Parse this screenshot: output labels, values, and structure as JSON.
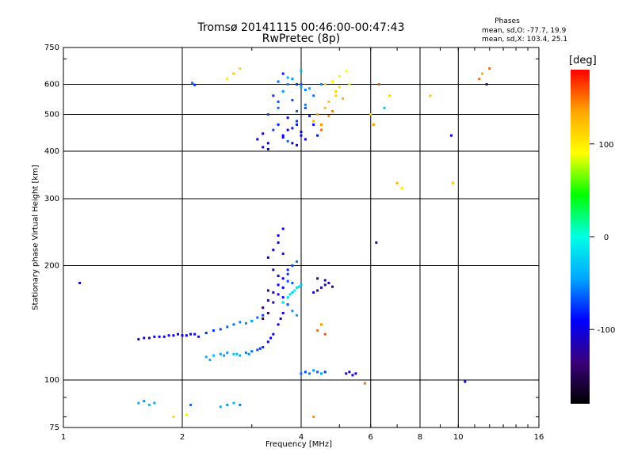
{
  "header": {
    "title": "Tromsø 20141115 00:46:00-00:47:43",
    "subtitle": "RwPretec (8p)"
  },
  "phases": {
    "title": "Phases",
    "o_mode": "mean, sd,O: -77.7, 19.9",
    "x_mode": "mean, sd,X: 103.4, 25.1"
  },
  "colorbar": {
    "unit": "[deg]",
    "ticks": [
      "100",
      "0",
      "-100"
    ],
    "tick_values": [
      100,
      0,
      -100
    ],
    "range": [
      -180,
      180
    ],
    "colors": [
      "#000000",
      "#3a007a",
      "#0000ff",
      "#00a6ff",
      "#00ffe6",
      "#00ff00",
      "#ffff00",
      "#ffa500",
      "#ff0000"
    ]
  },
  "chart_data": {
    "type": "scatter",
    "xlabel": "Frequency [MHz]",
    "ylabel": "Stationary phase Virtual Height [km]",
    "xscale": "log",
    "yscale": "log",
    "xlim": [
      1,
      16
    ],
    "ylim": [
      75,
      750
    ],
    "x_ticks": [
      1,
      2,
      4,
      6,
      8,
      10,
      16
    ],
    "x_tick_labels": [
      "1",
      "2",
      "4",
      "6",
      "8",
      "10",
      "16"
    ],
    "y_ticks": [
      75,
      100,
      200,
      300,
      400,
      500,
      600,
      750
    ],
    "y_tick_labels": [
      "75",
      "100",
      "200",
      "300",
      "400",
      "500",
      "600",
      "750"
    ],
    "grid_x": [
      2,
      4,
      6,
      8,
      10
    ],
    "grid_y": [
      100,
      200,
      300,
      400,
      500,
      600
    ],
    "series": [
      {
        "x": [
          3.1,
          3.2,
          3.3,
          3.4,
          3.5,
          3.6,
          3.7,
          3.8,
          3.9,
          4.0,
          3.3,
          3.5,
          3.7,
          3.9,
          4.1,
          3.4,
          3.6,
          3.8,
          4.0,
          3.5,
          3.7,
          3.9,
          4.1,
          3.6,
          3.8,
          4.0,
          4.2,
          3.7,
          3.9,
          4.2,
          3.8,
          4.0,
          4.3,
          3.9,
          4.1,
          4.4,
          3.5,
          3.7,
          4.0,
          3.2,
          3.3,
          3.6,
          3.9,
          4.1,
          4.3,
          4.5
        ],
        "y": [
          430,
          445,
          420,
          455,
          470,
          440,
          425,
          460,
          480,
          450,
          500,
          520,
          490,
          510,
          530,
          560,
          575,
          545,
          590,
          610,
          625,
          600,
          580,
          640,
          620,
          600,
          585,
          455,
          470,
          495,
          420,
          440,
          470,
          415,
          430,
          440,
          540,
          600,
          650,
          410,
          405,
          435,
          470,
          520,
          560,
          600
        ],
        "phase": [
          -95,
          -110,
          -90,
          -70,
          -80,
          -100,
          -60,
          -85,
          -75,
          -90,
          -70,
          -60,
          -95,
          -65,
          -55,
          -80,
          -50,
          -70,
          -45,
          -60,
          -40,
          -75,
          -55,
          -85,
          -50,
          -65,
          -45,
          -105,
          -95,
          -80,
          -115,
          -100,
          -90,
          -105,
          -95,
          -85,
          -65,
          -55,
          -40,
          -120,
          -110,
          -95,
          -80,
          -70,
          -60,
          -50
        ]
      },
      {
        "x": [
          4.3,
          4.4,
          4.5,
          4.6,
          4.7,
          4.8,
          4.9,
          5.0,
          4.6,
          4.8,
          5.0,
          5.2,
          5.3,
          4.9,
          5.1,
          4.7,
          4.5
        ],
        "y": [
          480,
          500,
          470,
          520,
          540,
          510,
          560,
          590,
          600,
          610,
          630,
          650,
          600,
          575,
          550,
          495,
          455
        ],
        "phase": [
          130,
          135,
          140,
          125,
          120,
          145,
          115,
          110,
          105,
          100,
          95,
          90,
          85,
          115,
          125,
          140,
          150
        ]
      },
      {
        "x": [
          1.55,
          1.6,
          1.7,
          1.8,
          1.9,
          2.0,
          2.1,
          2.2,
          2.3,
          2.4,
          2.5,
          2.6,
          2.7,
          2.8,
          2.9,
          3.0,
          3.1,
          3.2,
          1.65,
          1.75,
          1.85,
          1.95,
          2.05,
          2.15
        ],
        "y": [
          128,
          129,
          130,
          130,
          131,
          131,
          132,
          130,
          133,
          135,
          136,
          138,
          140,
          142,
          141,
          143,
          146,
          148,
          129,
          130,
          131,
          132,
          131,
          132
        ],
        "phase": [
          -110,
          -105,
          -100,
          -112,
          -95,
          -100,
          -90,
          -85,
          -80,
          -75,
          -70,
          -65,
          -60,
          -55,
          -50,
          -45,
          -60,
          -70,
          -108,
          -98,
          -104,
          -92,
          -96,
          -88
        ]
      },
      {
        "x": [
          2.3,
          2.4,
          2.5,
          2.6,
          2.7,
          2.8,
          2.9,
          3.0,
          3.1,
          3.2,
          3.3,
          3.4,
          3.5,
          3.6,
          3.7,
          2.35,
          2.55,
          2.75,
          2.95,
          3.15,
          3.35,
          3.55
        ],
        "y": [
          115,
          116,
          117,
          118,
          117,
          116,
          118,
          119,
          120,
          122,
          126,
          132,
          140,
          150,
          158,
          113,
          116,
          117,
          117,
          121,
          129,
          145
        ],
        "phase": [
          -40,
          -35,
          -45,
          -50,
          -30,
          -40,
          -55,
          -60,
          -70,
          -80,
          -90,
          -95,
          -100,
          -105,
          -110,
          -42,
          -48,
          -33,
          -52,
          -75,
          -92,
          -102
        ]
      },
      {
        "x": [
          3.2,
          3.3,
          3.4,
          3.5,
          3.6,
          3.7,
          3.8,
          3.9,
          3.3,
          3.4,
          3.5,
          3.6,
          3.7,
          3.8,
          3.2,
          3.3,
          3.4,
          3.5,
          3.6,
          3.7,
          3.5,
          3.6,
          3.4,
          3.5,
          3.3,
          3.6,
          3.7,
          3.8,
          3.9
        ],
        "y": [
          155,
          162,
          170,
          178,
          185,
          195,
          200,
          205,
          210,
          220,
          230,
          215,
          190,
          180,
          145,
          150,
          160,
          168,
          175,
          182,
          240,
          250,
          195,
          188,
          172,
          165,
          158,
          152,
          148
        ],
        "phase": [
          -140,
          -120,
          -110,
          -95,
          -100,
          -80,
          -70,
          -60,
          -115,
          -105,
          -90,
          -85,
          -75,
          -65,
          -150,
          -130,
          -125,
          -110,
          -90,
          -70,
          -100,
          -95,
          -120,
          -105,
          -135,
          -85,
          -60,
          -50,
          -45
        ]
      },
      {
        "x": [
          3.6,
          3.7,
          3.8,
          3.9,
          4.0,
          3.75,
          3.85,
          3.95
        ],
        "y": [
          160,
          165,
          170,
          175,
          178,
          168,
          172,
          176
        ],
        "phase": [
          -20,
          -15,
          -25,
          -10,
          -30,
          -18,
          -12,
          -22
        ]
      },
      {
        "x": [
          4.3,
          4.4,
          4.5,
          4.6,
          4.7,
          4.8,
          4.4,
          4.6
        ],
        "y": [
          170,
          172,
          175,
          178,
          180,
          176,
          185,
          183
        ],
        "phase": [
          -120,
          -130,
          -125,
          -115,
          -110,
          -135,
          -140,
          -118
        ]
      },
      {
        "x": [
          4.4,
          4.5,
          4.6
        ],
        "y": [
          135,
          140,
          132
        ],
        "phase": [
          150,
          140,
          160
        ]
      },
      {
        "x": [
          4.0,
          4.1,
          4.2,
          4.3,
          4.4,
          4.5,
          4.6,
          5.2,
          5.3,
          5.4,
          5.5
        ],
        "y": [
          104,
          105,
          104,
          106,
          105,
          104,
          105,
          104,
          105,
          103,
          104
        ],
        "phase": [
          -60,
          -70,
          -55,
          -50,
          -65,
          -45,
          -75,
          -110,
          -120,
          -100,
          -115
        ],
        "name": ""
      },
      {
        "x": [
          1.55,
          1.6,
          1.65,
          1.7,
          2.1,
          2.5,
          2.6,
          2.7,
          2.8,
          1.9,
          2.05
        ],
        "y": [
          87,
          88,
          86,
          87,
          86,
          85,
          86,
          87,
          86,
          80,
          81
        ],
        "phase": [
          -40,
          -50,
          -35,
          -45,
          -60,
          -40,
          -50,
          -35,
          -55,
          110,
          100
        ]
      },
      {
        "x": [
          1.1,
          2.12,
          2.15,
          2.6,
          2.7,
          2.8,
          6.1,
          6.3,
          6.5,
          6.7,
          7.0,
          7.2,
          8.5,
          9.6,
          9.7,
          11.3,
          11.5,
          11.8,
          12.0,
          6.0,
          6.2,
          4.3,
          5.8,
          10.4
        ],
        "y": [
          180,
          605,
          598,
          620,
          640,
          660,
          470,
          600,
          520,
          560,
          330,
          320,
          560,
          440,
          330,
          620,
          640,
          600,
          660,
          500,
          230,
          80,
          98,
          99
        ],
        "phase": [
          -100,
          -60,
          -80,
          100,
          120,
          110,
          140,
          160,
          -30,
          110,
          130,
          100,
          120,
          -100,
          120,
          150,
          130,
          -120,
          155,
          110,
          -120,
          140,
          150,
          -90
        ]
      }
    ]
  }
}
